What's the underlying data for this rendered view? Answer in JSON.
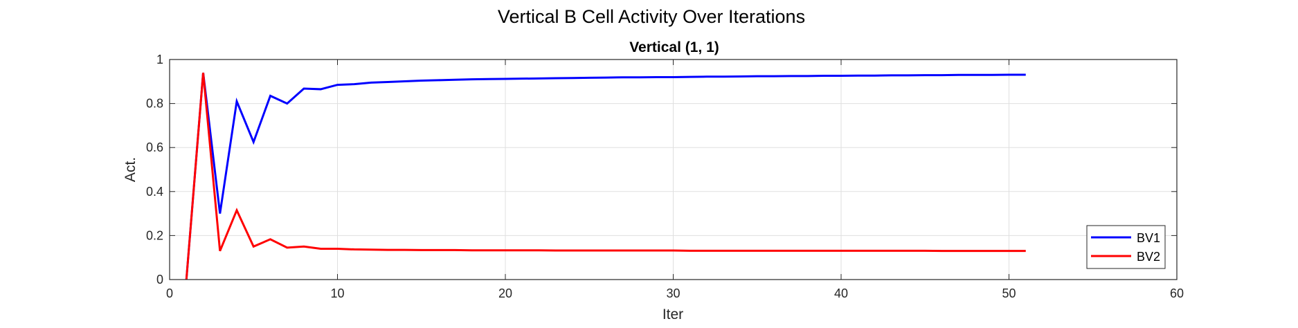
{
  "figure": {
    "suptitle": "Vertical B Cell Activity Over Iterations"
  },
  "chart_data": {
    "type": "line",
    "title": "Vertical (1, 1)",
    "xlabel": "Iter",
    "ylabel": "Act.",
    "xlim": [
      0,
      60
    ],
    "ylim": [
      0,
      1
    ],
    "xticks": [
      0,
      10,
      20,
      30,
      40,
      50,
      60
    ],
    "yticks": [
      0,
      0.2,
      0.4,
      0.6,
      0.8,
      1
    ],
    "xtick_labels": [
      "0",
      "10",
      "20",
      "30",
      "40",
      "50",
      "60"
    ],
    "ytick_labels": [
      "0",
      "0.2",
      "0.4",
      "0.6",
      "0.8",
      "1"
    ],
    "grid": true,
    "legend_position": "bottom-right",
    "x": [
      1,
      2,
      3,
      4,
      5,
      6,
      7,
      8,
      9,
      10,
      11,
      12,
      13,
      14,
      15,
      16,
      17,
      18,
      19,
      20,
      21,
      22,
      23,
      24,
      25,
      26,
      27,
      28,
      29,
      30,
      31,
      32,
      33,
      34,
      35,
      36,
      37,
      38,
      39,
      40,
      41,
      42,
      43,
      44,
      45,
      46,
      47,
      48,
      49,
      50,
      51
    ],
    "series": [
      {
        "name": "BV1",
        "color": "#0000ff",
        "values": [
          0.0,
          0.94,
          0.3,
          0.81,
          0.625,
          0.835,
          0.8,
          0.868,
          0.865,
          0.885,
          0.888,
          0.895,
          0.898,
          0.901,
          0.904,
          0.906,
          0.908,
          0.91,
          0.911,
          0.912,
          0.913,
          0.914,
          0.915,
          0.916,
          0.917,
          0.918,
          0.919,
          0.919,
          0.92,
          0.92,
          0.921,
          0.922,
          0.922,
          0.923,
          0.924,
          0.924,
          0.925,
          0.925,
          0.926,
          0.926,
          0.927,
          0.927,
          0.928,
          0.928,
          0.929,
          0.929,
          0.93,
          0.93,
          0.93,
          0.931,
          0.931
        ]
      },
      {
        "name": "BV2",
        "color": "#ff0000",
        "values": [
          0.0,
          0.94,
          0.13,
          0.315,
          0.15,
          0.183,
          0.145,
          0.15,
          0.14,
          0.14,
          0.137,
          0.136,
          0.135,
          0.135,
          0.134,
          0.134,
          0.134,
          0.133,
          0.133,
          0.133,
          0.133,
          0.133,
          0.132,
          0.132,
          0.132,
          0.132,
          0.132,
          0.132,
          0.132,
          0.132,
          0.131,
          0.131,
          0.131,
          0.131,
          0.131,
          0.131,
          0.131,
          0.131,
          0.131,
          0.131,
          0.131,
          0.131,
          0.131,
          0.131,
          0.131,
          0.13,
          0.13,
          0.13,
          0.13,
          0.13,
          0.13
        ]
      }
    ]
  }
}
